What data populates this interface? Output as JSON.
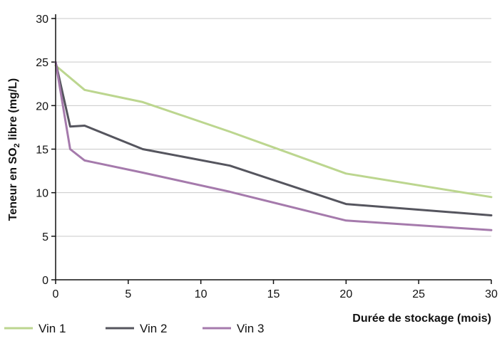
{
  "chart_data": {
    "type": "line",
    "xlabel": "Durée de stockage (mois)",
    "ylabel": {
      "before": "Teneur en SO",
      "subscript": "2",
      "after": " libre (mg/L)"
    },
    "xlim": [
      0,
      30
    ],
    "ylim": [
      0,
      30
    ],
    "xticks": [
      0,
      5,
      10,
      15,
      20,
      25,
      30
    ],
    "yticks": [
      0,
      5,
      10,
      15,
      20,
      25,
      30
    ],
    "grid": "horizontal",
    "legend": "bottom-left",
    "series": [
      {
        "name": "Vin 1",
        "color": "#bcd68f",
        "x": [
          0,
          2,
          6,
          12,
          20,
          30
        ],
        "y": [
          24.6,
          21.8,
          20.4,
          17.0,
          12.2,
          9.5
        ]
      },
      {
        "name": "Vin 2",
        "color": "#55555e",
        "x": [
          0,
          1,
          2,
          6,
          12,
          20,
          30
        ],
        "y": [
          25.0,
          17.6,
          17.7,
          15.0,
          13.1,
          8.7,
          7.4
        ]
      },
      {
        "name": "Vin 3",
        "color": "#a57aac",
        "x": [
          0,
          1,
          2,
          6,
          12,
          20,
          30
        ],
        "y": [
          25.0,
          15.0,
          13.7,
          12.3,
          10.1,
          6.8,
          5.7
        ]
      }
    ]
  }
}
